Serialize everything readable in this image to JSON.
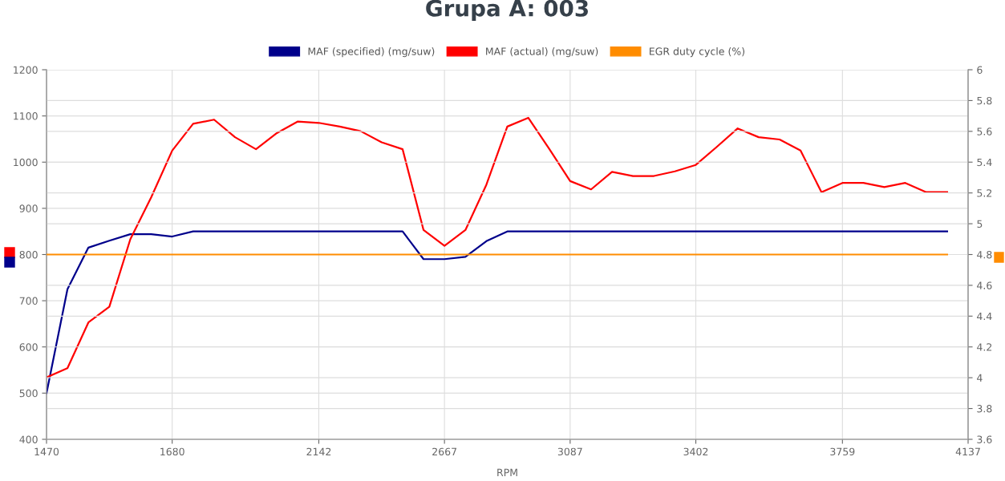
{
  "chart_data": {
    "type": "line",
    "title": "Grupa A: 003",
    "xlabel": "RPM",
    "categories": [
      "1470",
      null,
      null,
      null,
      null,
      null,
      "1680",
      null,
      null,
      null,
      null,
      null,
      null,
      "2142",
      null,
      null,
      null,
      null,
      null,
      "2667",
      null,
      null,
      null,
      null,
      null,
      "3087",
      null,
      null,
      null,
      null,
      null,
      "3402",
      null,
      null,
      null,
      null,
      null,
      null,
      "3759",
      null,
      null,
      null,
      null,
      null,
      "4137"
    ],
    "ylim": [
      400,
      1200
    ],
    "yticks": [
      400,
      500,
      600,
      700,
      800,
      900,
      1000,
      1100,
      1200
    ],
    "y2lim": [
      3.6,
      6
    ],
    "y2ticks": [
      {
        "value": 3.6,
        "label": "3.6"
      },
      {
        "value": 3.8,
        "label": "3.8"
      },
      {
        "value": 4,
        "label": "4"
      },
      {
        "value": 4.2,
        "label": "4.2"
      },
      {
        "value": 4.4,
        "label": "4.4"
      },
      {
        "value": 4.6,
        "label": "4.6"
      },
      {
        "value": 4.8,
        "label": "4.8"
      },
      {
        "value": 5,
        "label": "5"
      },
      {
        "value": 5.2,
        "label": "5.2"
      },
      {
        "value": 5.4,
        "label": "5.4"
      },
      {
        "value": 5.6,
        "label": "5.6"
      },
      {
        "value": 5.8,
        "label": "5.8"
      },
      {
        "value": 6,
        "label": "6"
      }
    ],
    "grid": true,
    "legend": "top",
    "marker": "none",
    "line_style": "solid",
    "series": [
      {
        "name": "MAF (specified) (mg/suw)",
        "color": "#00008b",
        "values": [
          500,
          725,
          815,
          830,
          844,
          844,
          839,
          850,
          850,
          850,
          850,
          850,
          850,
          850,
          850,
          850,
          850,
          850,
          790,
          790,
          795,
          829,
          850,
          850,
          850,
          850,
          850,
          850,
          850,
          850,
          850,
          850,
          850,
          850,
          850,
          850,
          850,
          850,
          850,
          850,
          850,
          850,
          850,
          850,
          null
        ]
      },
      {
        "name": "MAF (actual) (mg/suw)",
        "color": "#ff0000",
        "values": [
          534,
          554,
          653,
          687,
          833,
          924,
          1025,
          1083,
          1092,
          1054,
          1028,
          1063,
          1088,
          1085,
          1077,
          1067,
          1043,
          1028,
          853,
          819,
          853,
          951,
          1077,
          1096,
          1029,
          959,
          941,
          979,
          970,
          970,
          980,
          994,
          1033,
          1073,
          1054,
          1049,
          1025,
          935,
          955,
          955,
          946,
          955,
          935,
          935,
          null
        ]
      },
      {
        "name": "EGR duty cycle (%)",
        "color": "#ff8c00",
        "axis": "y2",
        "values": [
          4.8,
          4.8,
          4.8,
          4.8,
          4.8,
          4.8,
          4.8,
          4.8,
          4.8,
          4.8,
          4.8,
          4.8,
          4.8,
          4.8,
          4.8,
          4.8,
          4.8,
          4.8,
          4.8,
          4.8,
          4.8,
          4.8,
          4.8,
          4.8,
          4.8,
          4.8,
          4.8,
          4.8,
          4.8,
          4.8,
          4.8,
          4.8,
          4.8,
          4.8,
          4.8,
          4.8,
          4.8,
          4.8,
          4.8,
          4.8,
          4.8,
          4.8,
          4.8,
          4.8,
          null
        ]
      }
    ]
  }
}
